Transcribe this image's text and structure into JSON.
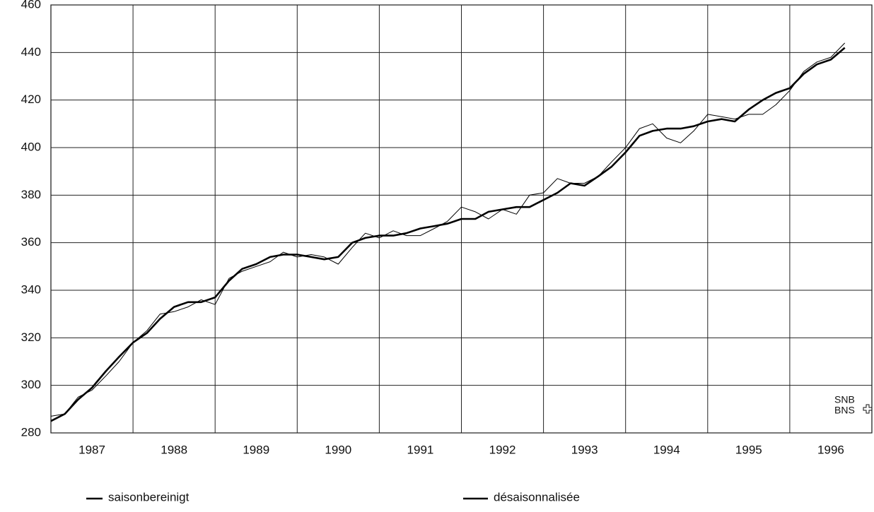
{
  "chart_data": {
    "type": "line",
    "x": [
      1987,
      1987.17,
      1987.33,
      1987.5,
      1987.67,
      1987.83,
      1988,
      1988.17,
      1988.33,
      1988.5,
      1988.67,
      1988.83,
      1989,
      1989.17,
      1989.33,
      1989.5,
      1989.67,
      1989.83,
      1990,
      1990.17,
      1990.33,
      1990.5,
      1990.67,
      1990.83,
      1991,
      1991.17,
      1991.33,
      1991.5,
      1991.67,
      1991.83,
      1992,
      1992.17,
      1992.33,
      1992.5,
      1992.67,
      1992.83,
      1993,
      1993.17,
      1993.33,
      1993.5,
      1993.67,
      1993.83,
      1994,
      1994.17,
      1994.33,
      1994.5,
      1994.67,
      1994.83,
      1995,
      1995.17,
      1995.33,
      1995.5,
      1995.67,
      1995.83,
      1996,
      1996.17,
      1996.33,
      1996.5,
      1996.67
    ],
    "series": [
      {
        "color": "#000000",
        "width": 1,
        "values": [
          287,
          288,
          295,
          298,
          304,
          310,
          318,
          323,
          330,
          331,
          333,
          336,
          334,
          345,
          348,
          350,
          352,
          356,
          354,
          355,
          354,
          351,
          358,
          364,
          362,
          365,
          363,
          363,
          366,
          369,
          375,
          373,
          370,
          374,
          372,
          380,
          381,
          387,
          385,
          385,
          388,
          394,
          400,
          408,
          410,
          404,
          402,
          407,
          414,
          413,
          412,
          414,
          414,
          418,
          424,
          432,
          436,
          438,
          444
        ]
      },
      {
        "color": "#000000",
        "width": 2.6,
        "values": [
          285,
          288,
          294,
          299,
          306,
          312,
          318,
          322,
          328,
          333,
          335,
          335,
          337,
          344,
          349,
          351,
          354,
          355,
          355,
          354,
          353,
          354,
          360,
          362,
          363,
          363,
          364,
          366,
          367,
          368,
          370,
          370,
          373,
          374,
          375,
          375,
          378,
          381,
          385,
          384,
          388,
          392,
          398,
          405,
          407,
          408,
          408,
          409,
          411,
          412,
          411,
          416,
          420,
          423,
          425,
          431,
          435,
          437,
          442
        ]
      }
    ],
    "legend": [
      "saisonbereinigt",
      "désaisonnalisée"
    ],
    "ylim": [
      280,
      460
    ],
    "yticks": [
      280,
      300,
      320,
      340,
      360,
      380,
      400,
      420,
      440,
      460
    ],
    "xlim": [
      1987,
      1997
    ],
    "xticks": [
      {
        "value": 1987.5,
        "label": "1987"
      },
      {
        "value": 1988.5,
        "label": "1988"
      },
      {
        "value": 1989.5,
        "label": "1989"
      },
      {
        "value": 1990.5,
        "label": "1990"
      },
      {
        "value": 1991.5,
        "label": "1991"
      },
      {
        "value": 1992.5,
        "label": "1992"
      },
      {
        "value": 1993.5,
        "label": "1993"
      },
      {
        "value": 1994.5,
        "label": "1994"
      },
      {
        "value": 1995.5,
        "label": "1995"
      },
      {
        "value": 1996.5,
        "label": "1996"
      }
    ],
    "xgrid": [
      1988,
      1989,
      1990,
      1991,
      1992,
      1993,
      1994,
      1995,
      1996
    ],
    "grid": true,
    "logo": [
      "SNB",
      "BNS"
    ]
  }
}
